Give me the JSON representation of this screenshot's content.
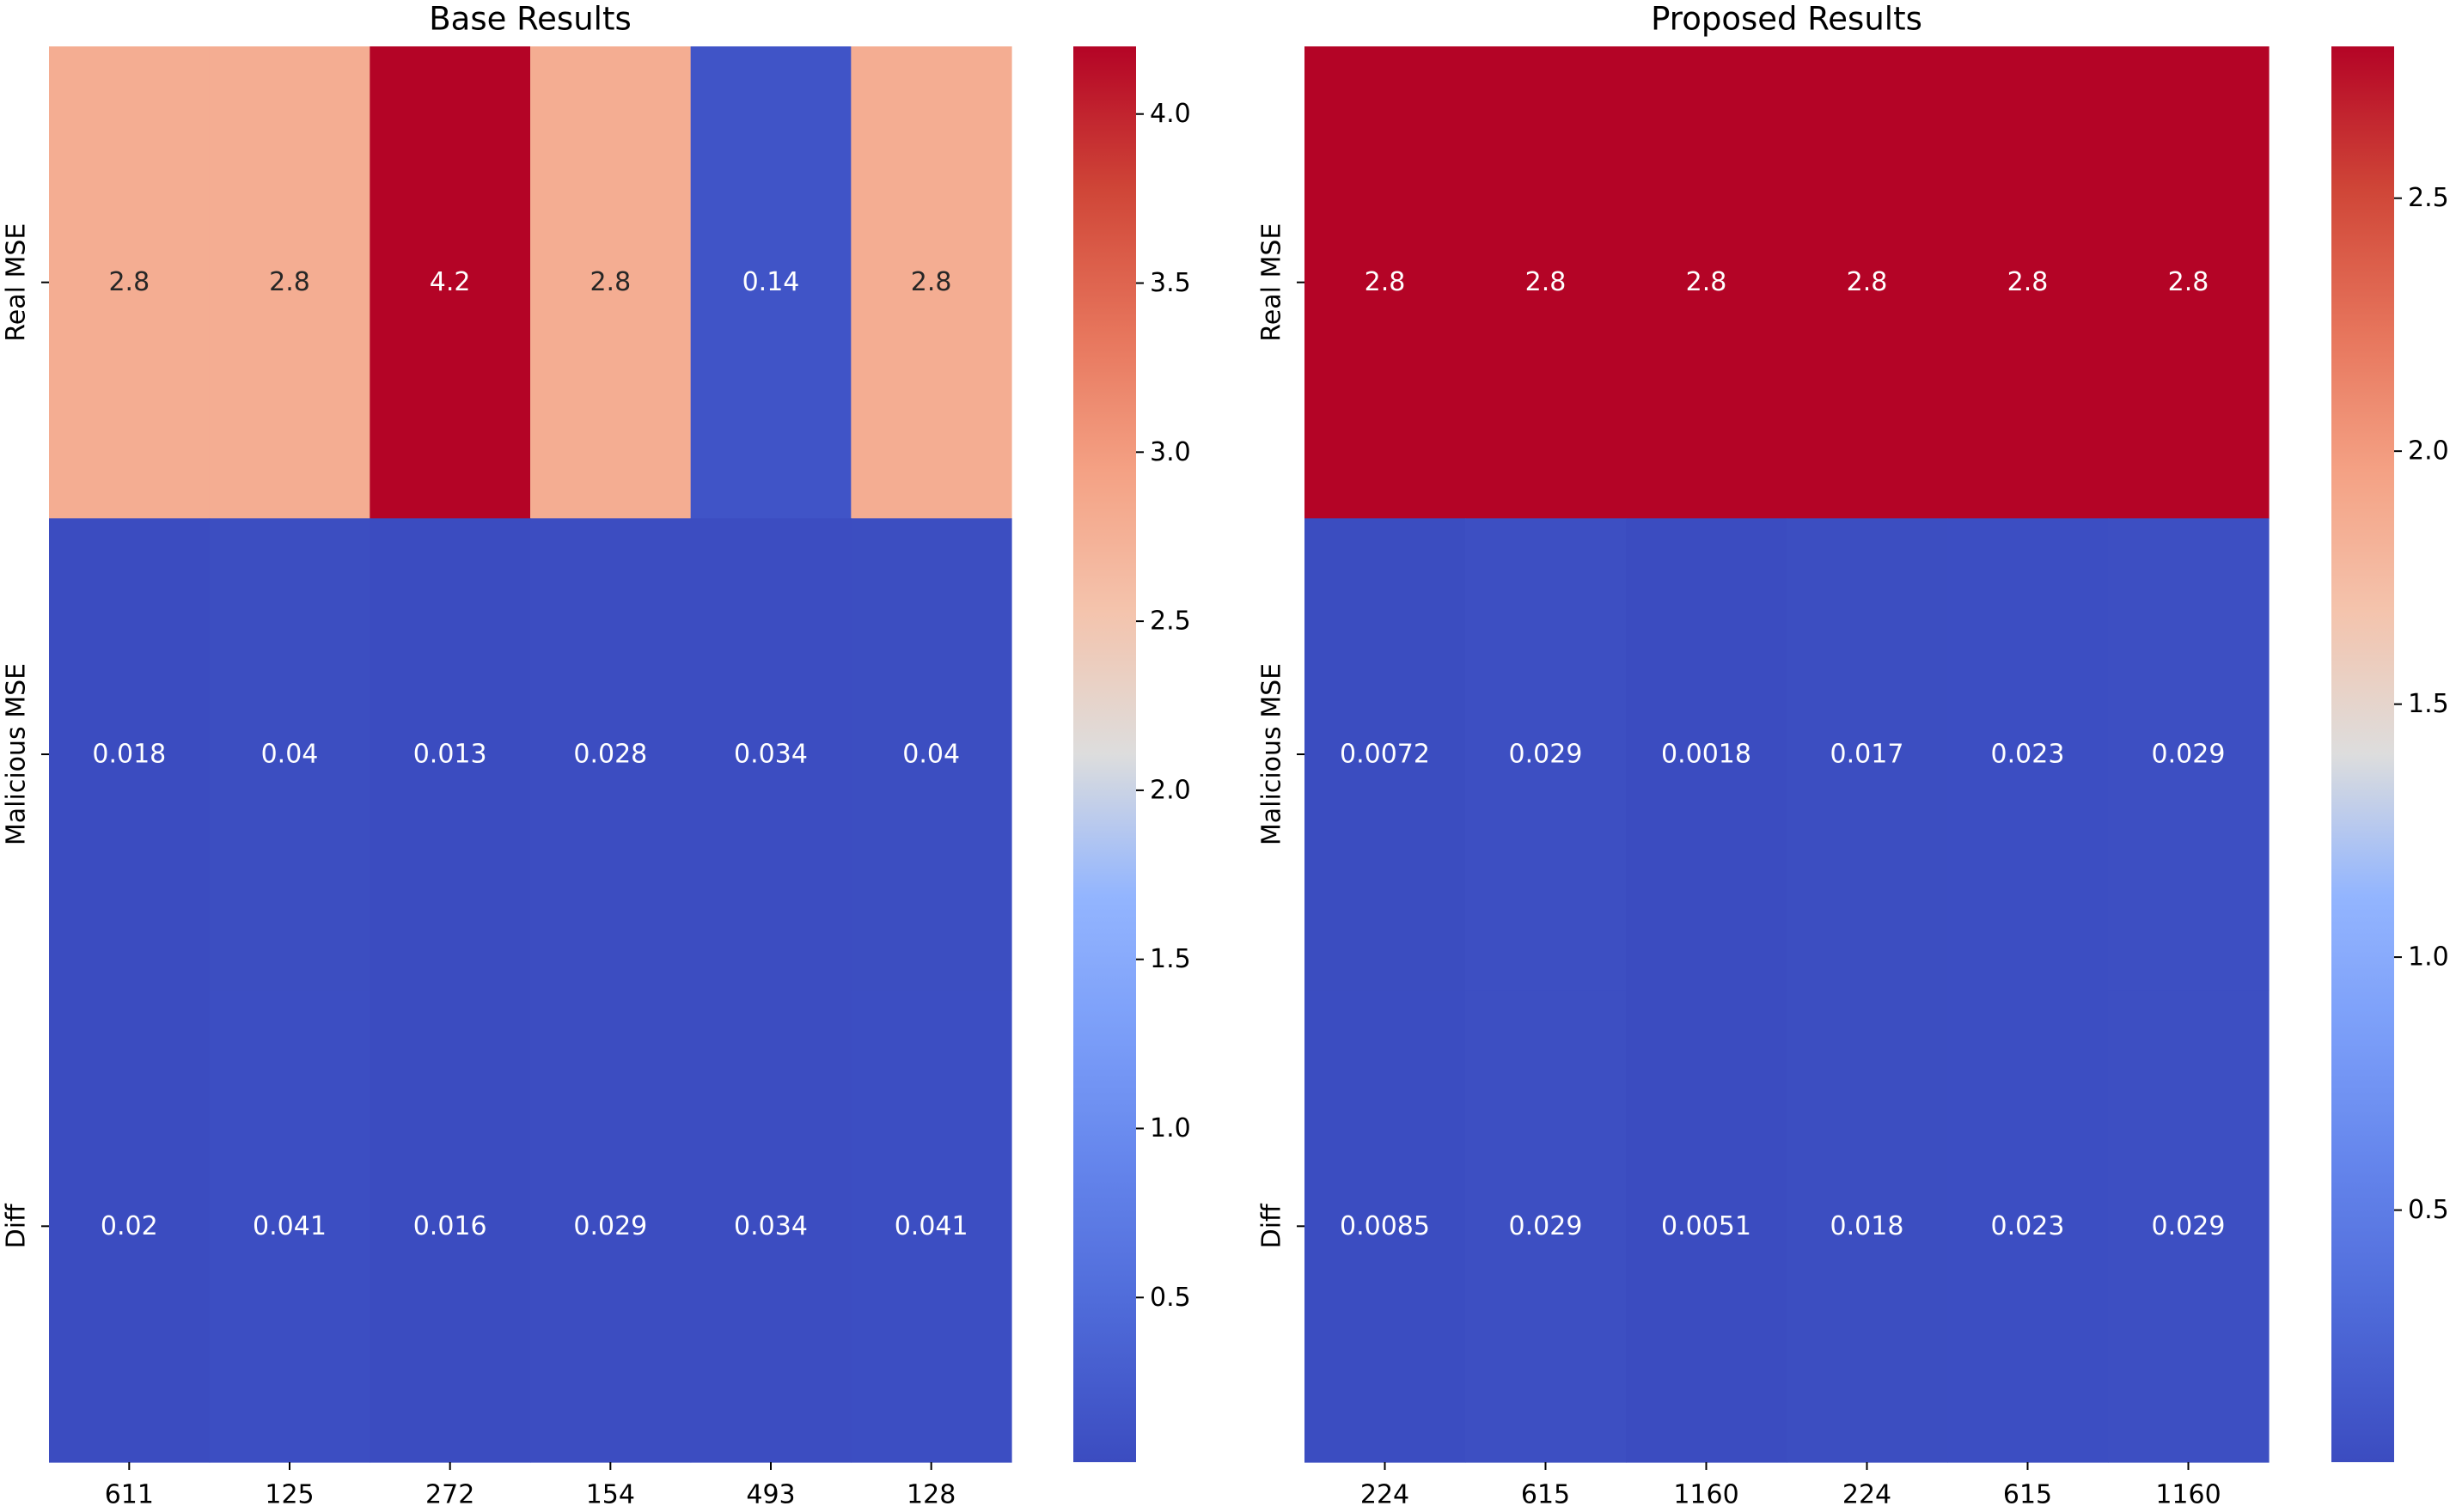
{
  "chart_data": [
    {
      "type": "heatmap",
      "title": "Base Results",
      "xlabel": "",
      "ylabel": "",
      "x_categories": [
        "611",
        "125",
        "272",
        "154",
        "493",
        "128"
      ],
      "y_categories": [
        "Real MSE",
        "Malicious MSE",
        "Diff"
      ],
      "values": [
        [
          2.8,
          2.8,
          4.2,
          2.8,
          0.14,
          2.8
        ],
        [
          0.018,
          0.04,
          0.013,
          0.028,
          0.034,
          0.04
        ],
        [
          0.02,
          0.041,
          0.016,
          0.029,
          0.034,
          0.041
        ]
      ],
      "annotations": [
        [
          "2.8",
          "2.8",
          "4.2",
          "2.8",
          "0.14",
          "2.8"
        ],
        [
          "0.018",
          "0.04",
          "0.013",
          "0.028",
          "0.034",
          "0.04"
        ],
        [
          "0.02",
          "0.041",
          "0.016",
          "0.029",
          "0.034",
          "0.041"
        ]
      ],
      "colormap": "coolwarm",
      "vmin": 0.013,
      "vmax": 4.2,
      "colorbar_ticks": [
        "0.5",
        "1.0",
        "1.5",
        "2.0",
        "2.5",
        "3.0",
        "3.5",
        "4.0"
      ]
    },
    {
      "type": "heatmap",
      "title": "Proposed Results",
      "xlabel": "",
      "ylabel": "",
      "x_categories": [
        "224",
        "615",
        "1160",
        "224",
        "615",
        "1160"
      ],
      "y_categories": [
        "Real MSE",
        "Malicious MSE",
        "Diff"
      ],
      "values": [
        [
          2.8,
          2.8,
          2.8,
          2.8,
          2.8,
          2.8
        ],
        [
          0.0072,
          0.029,
          0.0018,
          0.017,
          0.023,
          0.029
        ],
        [
          0.0085,
          0.029,
          0.0051,
          0.018,
          0.023,
          0.029
        ]
      ],
      "annotations": [
        [
          "2.8",
          "2.8",
          "2.8",
          "2.8",
          "2.8",
          "2.8"
        ],
        [
          "0.0072",
          "0.029",
          "0.0018",
          "0.017",
          "0.023",
          "0.029"
        ],
        [
          "0.0085",
          "0.029",
          "0.0051",
          "0.018",
          "0.023",
          "0.029"
        ]
      ],
      "colormap": "coolwarm",
      "vmin": 0.0018,
      "vmax": 2.8,
      "colorbar_ticks": [
        "0.5",
        "1.0",
        "1.5",
        "2.0",
        "2.5"
      ]
    }
  ],
  "colors": {
    "coolwarm_low": "#3b4cc0",
    "coolwarm_mid": "#dddddd",
    "coolwarm_high": "#b40426",
    "text_light": "#ffffff",
    "text_dark": "#262626",
    "axis": "#000000"
  }
}
